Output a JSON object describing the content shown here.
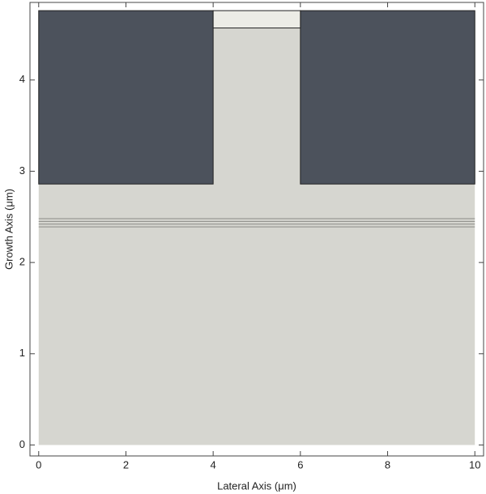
{
  "chart_data": {
    "type": "regions",
    "xlabel": "Lateral Axis (μm)",
    "ylabel": "Growth Axis (μm)",
    "xlim": [
      -0.2,
      10.2
    ],
    "ylim": [
      -0.12,
      4.85
    ],
    "xticks": [
      0,
      2,
      4,
      6,
      8,
      10
    ],
    "yticks": [
      0,
      1,
      2,
      3,
      4
    ],
    "regions": [
      {
        "x": [
          0,
          10
        ],
        "y": [
          0,
          4.76
        ],
        "color": "#d6d6d0"
      },
      {
        "x": [
          0,
          4
        ],
        "y": [
          2.86,
          4.76
        ],
        "color": "#4c525c"
      },
      {
        "x": [
          6,
          10
        ],
        "y": [
          2.86,
          4.76
        ],
        "color": "#4c525c"
      },
      {
        "x": [
          4,
          6
        ],
        "y": [
          4.57,
          4.76
        ],
        "color": "#ecece6"
      }
    ],
    "layer_lines": {
      "values": [
        2.39,
        2.42,
        2.45,
        2.48
      ],
      "color": "#8a8a86"
    }
  }
}
